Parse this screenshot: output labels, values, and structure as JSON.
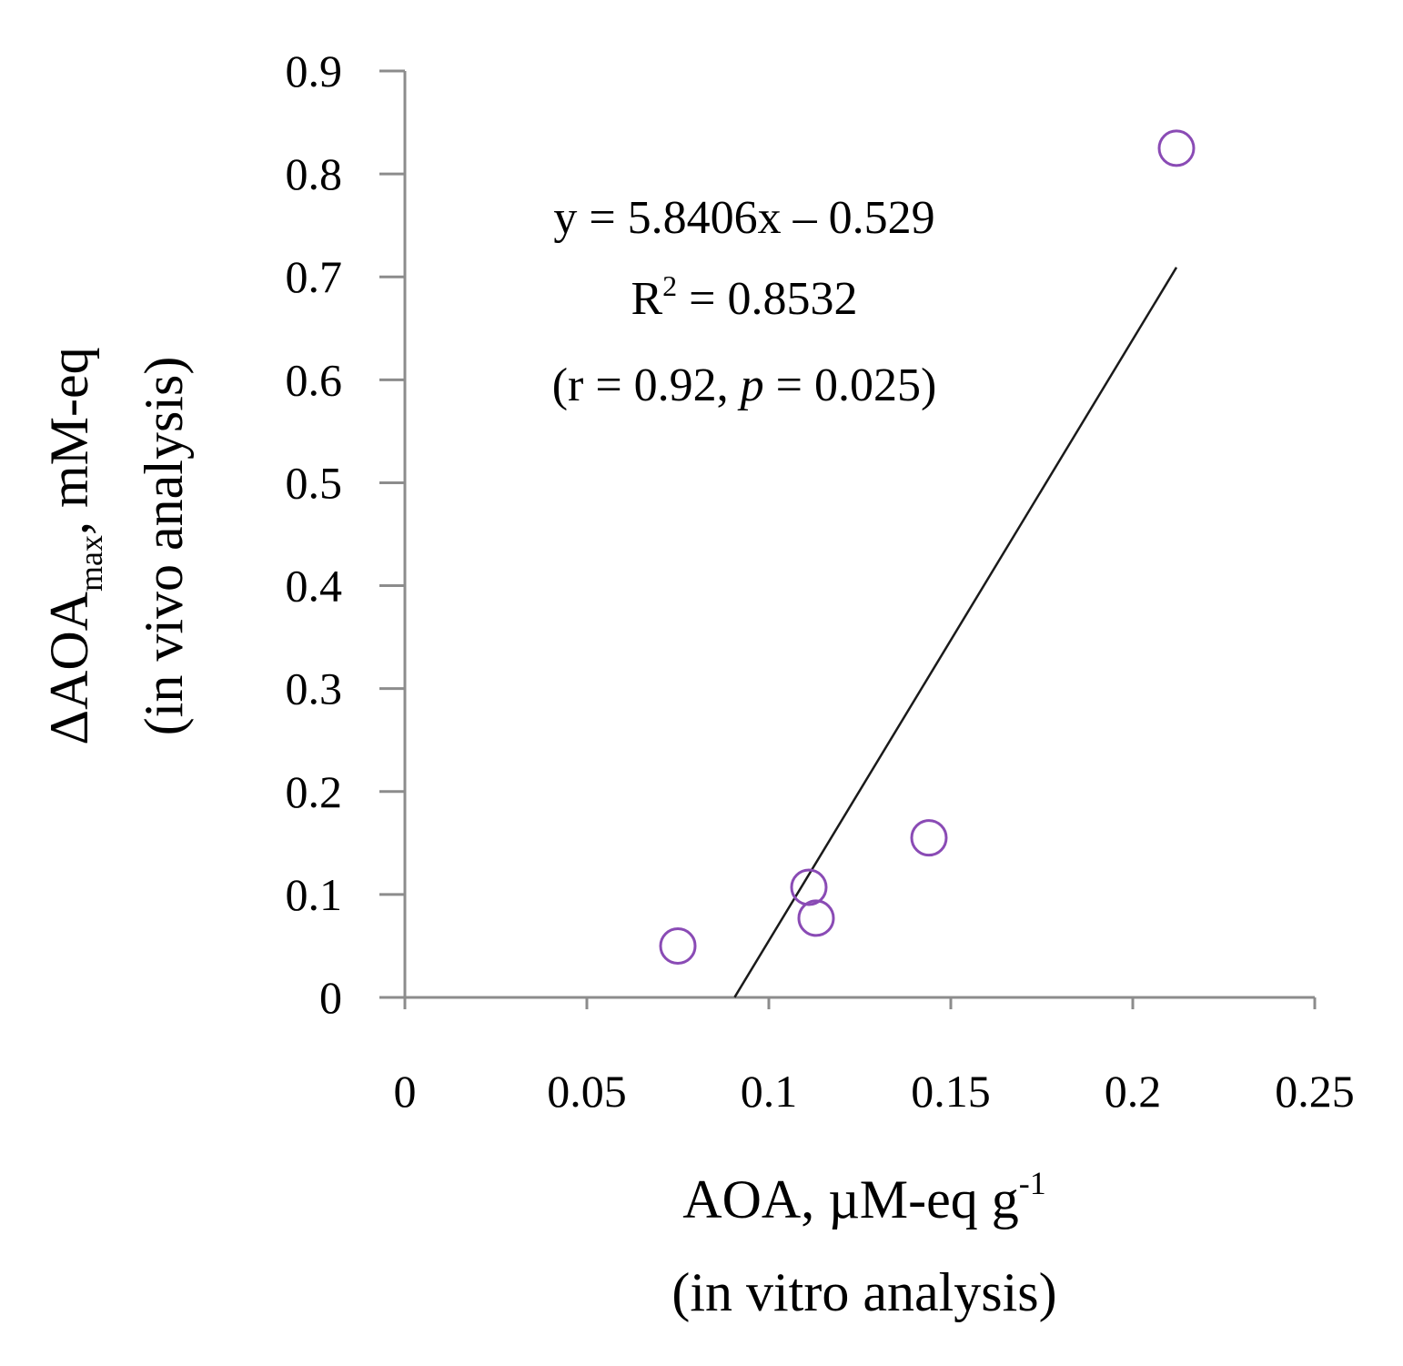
{
  "chart_data": {
    "type": "scatter",
    "series": [
      {
        "name": "samples",
        "color": "#8a4bb5",
        "points": [
          {
            "x": 0.075,
            "y": 0.05
          },
          {
            "x": 0.111,
            "y": 0.107
          },
          {
            "x": 0.113,
            "y": 0.077
          },
          {
            "x": 0.144,
            "y": 0.155
          },
          {
            "x": 0.212,
            "y": 0.825
          }
        ]
      }
    ],
    "trendline": {
      "slope": 5.8406,
      "intercept": -0.529,
      "x_start": 0.0906,
      "x_end": 0.212,
      "color": "#1a1a1a"
    },
    "annotation": {
      "equation": "y = 5.8406x – 0.529",
      "r_squared_prefix": "R",
      "r_squared_sup": "2",
      "r_squared_value": " = 0.8532",
      "stats_open": "(r = 0.92, ",
      "stats_p": "p",
      "stats_close": " = 0.025)"
    },
    "x_axis": {
      "ticks": [
        "0",
        "0.05",
        "0.1",
        "0.15",
        "0.2",
        "0.25"
      ],
      "range": [
        0,
        0.25
      ],
      "label_main": "AOA, µM-eq g",
      "label_sup": "-1",
      "label_line2": "(in vitro analysis)"
    },
    "y_axis": {
      "ticks": [
        "0",
        "0.1",
        "0.2",
        "0.3",
        "0.4",
        "0.5",
        "0.6",
        "0.7",
        "0.8",
        "0.9"
      ],
      "range": [
        0,
        0.9
      ],
      "label_main": "ΔAOA",
      "label_sub": "max",
      "label_rest": ", mM-eq",
      "label_line2": "(in vivo analysis)"
    },
    "grid": false,
    "axis_color": "#8c8c8c"
  }
}
